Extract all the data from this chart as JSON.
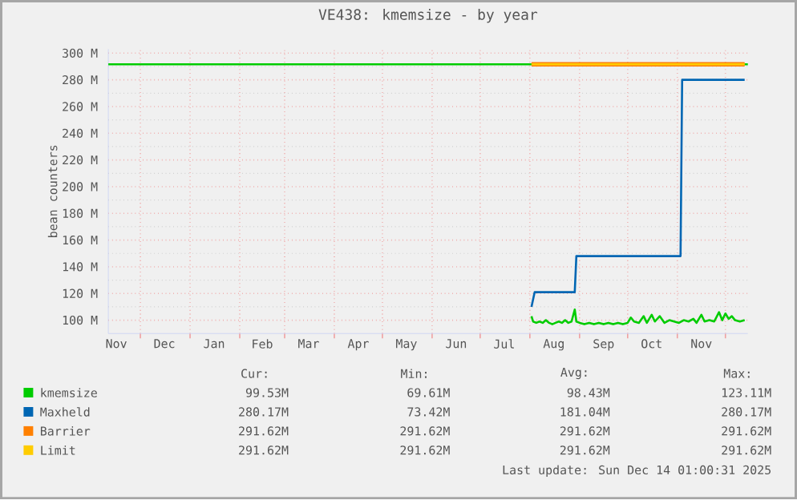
{
  "chart_data": {
    "type": "line",
    "title": "VE438: kmemsize - by year",
    "ylabel": "bean counters",
    "xlim": [
      "2024-11-11",
      "2025-12-15"
    ],
    "ylim": [
      90,
      303
    ],
    "xticks": [
      {
        "value": "2024-11-16",
        "label": "Nov"
      },
      {
        "value": "2024-12-01",
        "label": null
      },
      {
        "value": "2024-12-16",
        "label": "Dec"
      },
      {
        "value": "2025-01-01",
        "label": null
      },
      {
        "value": "2025-01-16",
        "label": "Jan"
      },
      {
        "value": "2025-02-01",
        "label": null
      },
      {
        "value": "2025-02-15",
        "label": "Feb"
      },
      {
        "value": "2025-03-01",
        "label": null
      },
      {
        "value": "2025-03-16",
        "label": "Mar"
      },
      {
        "value": "2025-04-01",
        "label": null
      },
      {
        "value": "2025-04-16",
        "label": "Apr"
      },
      {
        "value": "2025-05-01",
        "label": null
      },
      {
        "value": "2025-05-16",
        "label": "May"
      },
      {
        "value": "2025-06-01",
        "label": null
      },
      {
        "value": "2025-06-16",
        "label": "Jun"
      },
      {
        "value": "2025-07-01",
        "label": null
      },
      {
        "value": "2025-07-16",
        "label": "Jul"
      },
      {
        "value": "2025-08-01",
        "label": null
      },
      {
        "value": "2025-08-16",
        "label": "Aug"
      },
      {
        "value": "2025-09-01",
        "label": null
      },
      {
        "value": "2025-09-16",
        "label": "Sep"
      },
      {
        "value": "2025-10-01",
        "label": null
      },
      {
        "value": "2025-10-16",
        "label": "Oct"
      },
      {
        "value": "2025-11-01",
        "label": null
      },
      {
        "value": "2025-11-16",
        "label": "Nov"
      },
      {
        "value": "2025-12-01",
        "label": null
      }
    ],
    "yticks": [
      {
        "value": 100,
        "label": "100 M"
      },
      {
        "value": 120,
        "label": "120 M"
      },
      {
        "value": 140,
        "label": "140 M"
      },
      {
        "value": 160,
        "label": "160 M"
      },
      {
        "value": 180,
        "label": "180 M"
      },
      {
        "value": 200,
        "label": "200 M"
      },
      {
        "value": 220,
        "label": "220 M"
      },
      {
        "value": 240,
        "label": "240 M"
      },
      {
        "value": 260,
        "label": "260 M"
      },
      {
        "value": 280,
        "label": "280 M"
      },
      {
        "value": 300,
        "label": "300 M"
      }
    ],
    "grid": true,
    "legend": "bottom",
    "ref_lines": [
      {
        "axis": "y",
        "value": 291.62,
        "color": "#00cc00"
      }
    ],
    "series": [
      {
        "name": "kmemsize",
        "color": "#00cc00",
        "x": [
          "2025-08-02",
          "2025-08-03",
          "2025-08-05",
          "2025-08-07",
          "2025-08-09",
          "2025-08-11",
          "2025-08-13",
          "2025-08-15",
          "2025-08-17",
          "2025-08-19",
          "2025-08-21",
          "2025-08-23",
          "2025-08-25",
          "2025-08-27",
          "2025-08-29",
          "2025-08-30",
          "2025-09-01",
          "2025-09-04",
          "2025-09-07",
          "2025-09-10",
          "2025-09-13",
          "2025-09-16",
          "2025-09-19",
          "2025-09-22",
          "2025-09-25",
          "2025-09-28",
          "2025-10-01",
          "2025-10-03",
          "2025-10-05",
          "2025-10-08",
          "2025-10-11",
          "2025-10-13",
          "2025-10-16",
          "2025-10-18",
          "2025-10-21",
          "2025-10-24",
          "2025-10-27",
          "2025-10-30",
          "2025-11-02",
          "2025-11-05",
          "2025-11-08",
          "2025-11-11",
          "2025-11-13",
          "2025-11-16",
          "2025-11-18",
          "2025-11-21",
          "2025-11-24",
          "2025-11-27",
          "2025-11-29",
          "2025-12-01",
          "2025-12-03",
          "2025-12-05",
          "2025-12-07",
          "2025-12-10",
          "2025-12-13"
        ],
        "values": [
          103,
          99,
          98,
          99,
          98,
          100,
          98,
          97,
          98,
          99,
          98,
          100,
          98,
          99,
          108,
          99,
          98,
          97,
          98,
          97,
          98,
          97,
          98,
          97,
          98,
          97,
          98,
          102,
          99,
          98,
          103,
          98,
          104,
          99,
          103,
          98,
          100,
          99,
          98,
          100,
          99,
          101,
          98,
          104,
          99,
          100,
          99,
          106,
          100,
          105,
          101,
          103,
          100,
          99,
          100
        ]
      },
      {
        "name": "Maxheld",
        "color": "#0066b3",
        "x": [
          "2025-08-02",
          "2025-08-04",
          "2025-08-29",
          "2025-08-30",
          "2025-11-03",
          "2025-11-04",
          "2025-12-13"
        ],
        "values": [
          110,
          121,
          121,
          148,
          148,
          280,
          280
        ]
      },
      {
        "name": "Barrier",
        "color": "#ff8000",
        "x": [
          "2025-08-02",
          "2025-12-13"
        ],
        "values": [
          291.62,
          291.62
        ]
      },
      {
        "name": "Limit",
        "color": "#ffcc00",
        "x": [
          "2025-08-02",
          "2025-12-13"
        ],
        "values": [
          291.62,
          291.62
        ]
      }
    ],
    "annotations": [
      "Cur:",
      "Min:",
      "Avg:",
      "Max:",
      "99.53M",
      "69.61M",
      "98.43M",
      "123.11M",
      "280.17M",
      "73.42M",
      "181.04M",
      "280.17M",
      "291.62M",
      "291.62M",
      "291.62M",
      "291.62M",
      "291.62M",
      "291.62M",
      "291.62M",
      "291.62M",
      "Last update: Sun Dec 14 01:00:31 2025"
    ]
  }
}
